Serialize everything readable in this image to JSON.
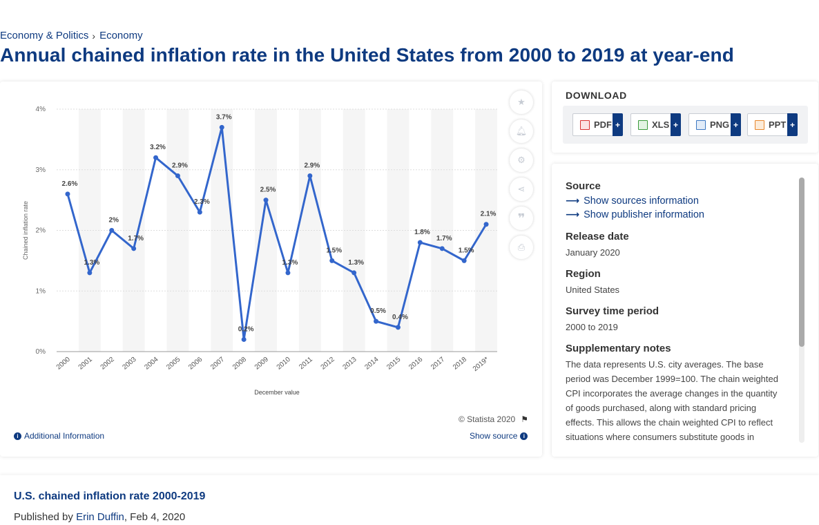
{
  "breadcrumb": {
    "items": [
      "Economy & Politics",
      "Economy"
    ],
    "separator": "›"
  },
  "page_title": "Annual chained inflation rate in the United States from 2000 to 2019 at year-end",
  "tools": [
    "star-icon",
    "bell-icon",
    "gear-icon",
    "share-icon",
    "quote-icon",
    "print-icon"
  ],
  "chart_footer": {
    "copyright": "© Statista 2020",
    "additional_info": "Additional Information",
    "show_source": "Show source"
  },
  "download": {
    "title": "DOWNLOAD",
    "buttons": [
      {
        "label": "PDF",
        "color": "#d9302f"
      },
      {
        "label": "XLS",
        "color": "#3a9a3a"
      },
      {
        "label": "PNG",
        "color": "#3b78c2"
      },
      {
        "label": "PPT",
        "color": "#e8862a"
      }
    ]
  },
  "info": {
    "source_heading": "Source",
    "source_link": "Show sources information",
    "publisher_link": "Show publisher information",
    "release_heading": "Release date",
    "release_value": "January 2020",
    "region_heading": "Region",
    "region_value": "United States",
    "survey_heading": "Survey time period",
    "survey_value": "2000 to 2019",
    "notes_heading": "Supplementary notes",
    "notes_value": "The data represents U.S. city averages. The base period was December 1999=100. The chain weighted CPI incorporates the average changes in the quantity of goods purchased, along with standard pricing effects. This allows the chain weighted CPI to reflect situations where consumers substitute goods in response to price changes."
  },
  "footer": {
    "title": "U.S. chained inflation rate 2000-2019",
    "published_by": "Published by",
    "author": "Erin Duffin",
    "date": ", Feb 4, 2020"
  },
  "chart_data": {
    "type": "line",
    "title": "",
    "xlabel": "December value",
    "ylabel": "Chained inflation rate",
    "categories": [
      "2000",
      "2001",
      "2002",
      "2003",
      "2004",
      "2005",
      "2006",
      "2007",
      "2008",
      "2009",
      "2010",
      "2011",
      "2012",
      "2013",
      "2014",
      "2015",
      "2016",
      "2017",
      "2018",
      "2019*"
    ],
    "values": [
      2.6,
      1.3,
      2.0,
      1.7,
      3.2,
      2.9,
      2.3,
      3.7,
      0.2,
      2.5,
      1.3,
      2.9,
      1.5,
      1.3,
      0.5,
      0.4,
      1.8,
      1.7,
      1.5,
      2.1
    ],
    "data_labels": [
      "2.6%",
      "1.3%",
      "2%",
      "1.7%",
      "3.2%",
      "2.9%",
      "2.3%",
      "3.7%",
      "0.2%",
      "2.5%",
      "1.3%",
      "2.9%",
      "1.5%",
      "1.3%",
      "0.5%",
      "0.4%",
      "1.8%",
      "1.7%",
      "1.5%",
      "2.1%"
    ],
    "y_ticks": [
      "0%",
      "1%",
      "2%",
      "3%",
      "4%"
    ],
    "ylim": [
      0,
      4
    ],
    "line_color": "#3366cc",
    "grid": true
  }
}
